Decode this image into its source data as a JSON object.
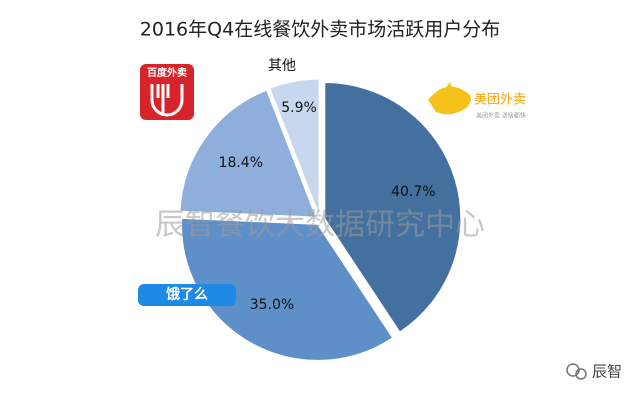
{
  "chart_data": {
    "type": "pie",
    "title": "2016年Q4在线餐饮外卖市场活跃用户分布",
    "categories": [
      "美团外卖",
      "饿了么",
      "百度外卖",
      "其他"
    ],
    "values": [
      40.7,
      35.0,
      18.4,
      5.9
    ],
    "value_labels": [
      "40.7%",
      "35.0%",
      "18.4%",
      "5.9%"
    ],
    "colors": [
      "#44709f",
      "#5f8fc8",
      "#8eaedb",
      "#c7d7ee"
    ],
    "annotations": {
      "watermark": "辰智餐饮大数据研究中心",
      "source": "辰智",
      "meituan_tagline": "美团外卖  送啥都快"
    }
  }
}
